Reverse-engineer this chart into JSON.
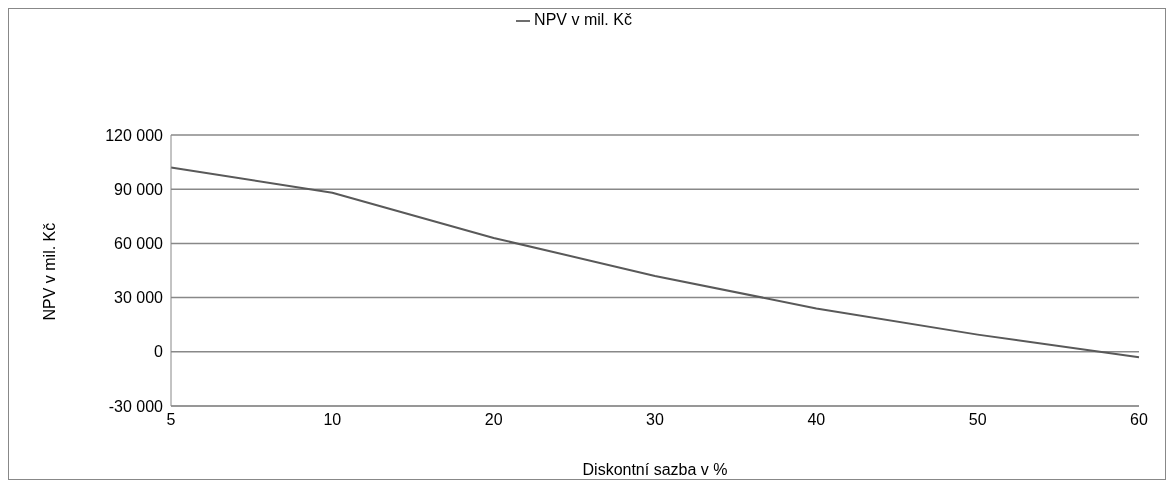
{
  "chart_data": {
    "type": "line",
    "xlabel": "Diskontní sazba v %",
    "ylabel": "NPV v mil. Kč",
    "categories": [
      "5",
      "10",
      "20",
      "30",
      "40",
      "50",
      "60"
    ],
    "series": [
      {
        "name": "NPV v mil. Kč",
        "color": "#595959",
        "values": [
          102000,
          88000,
          63000,
          42000,
          24000,
          9500,
          -3000
        ]
      }
    ],
    "ylim": [
      -30000,
      120000
    ],
    "yticks": [
      {
        "value": -30000,
        "label": "-30 000"
      },
      {
        "value": 0,
        "label": "0"
      },
      {
        "value": 30000,
        "label": "30 000"
      },
      {
        "value": 60000,
        "label": "60 000"
      },
      {
        "value": 90000,
        "label": "90 000"
      },
      {
        "value": 120000,
        "label": "120 000"
      }
    ],
    "grid": "y",
    "legend": "top",
    "marker": "none",
    "line_style": "solid"
  }
}
